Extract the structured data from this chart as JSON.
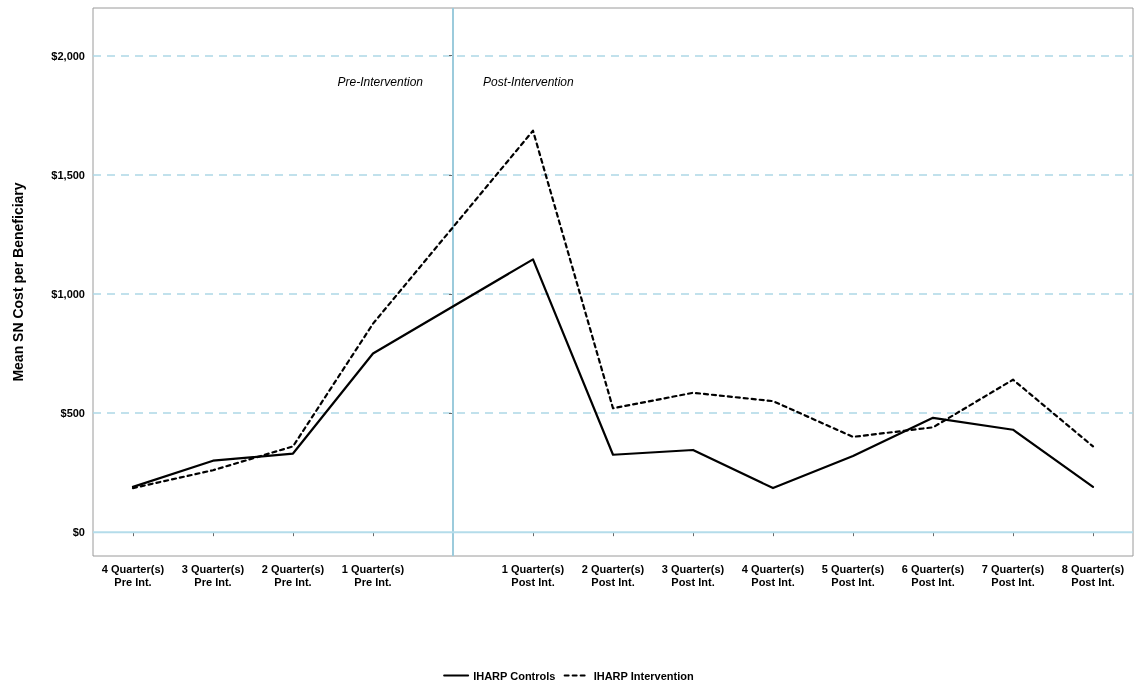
{
  "chart_data": {
    "type": "line",
    "ylabel": "Mean SN Cost per Beneficiary",
    "x": [
      -4,
      -3,
      -2,
      -1,
      1,
      2,
      3,
      4,
      5,
      6,
      7,
      8
    ],
    "xlim": [
      -4.5,
      8.5
    ],
    "xticks": [
      {
        "value": -4,
        "label": "4 Quarter(s)\nPre Int."
      },
      {
        "value": -3,
        "label": "3 Quarter(s)\nPre Int."
      },
      {
        "value": -2,
        "label": "2 Quarter(s)\nPre Int."
      },
      {
        "value": -1,
        "label": "1 Quarter(s)\nPre Int."
      },
      {
        "value": 1,
        "label": "1 Quarter(s)\nPost Int."
      },
      {
        "value": 2,
        "label": "2 Quarter(s)\nPost Int."
      },
      {
        "value": 3,
        "label": "3 Quarter(s)\nPost Int."
      },
      {
        "value": 4,
        "label": "4 Quarter(s)\nPost Int."
      },
      {
        "value": 5,
        "label": "5 Quarter(s)\nPost Int."
      },
      {
        "value": 6,
        "label": "6 Quarter(s)\nPost Int."
      },
      {
        "value": 7,
        "label": "7 Quarter(s)\nPost Int."
      },
      {
        "value": 8,
        "label": "8 Quarter(s)\nPost Int."
      }
    ],
    "ylim": [
      -100,
      2200
    ],
    "yticks": [
      {
        "value": 0,
        "label": "$0"
      },
      {
        "value": 500,
        "label": "$500"
      },
      {
        "value": 1000,
        "label": "$1,000"
      },
      {
        "value": 1500,
        "label": "$1,500"
      },
      {
        "value": 2000,
        "label": "$2,000"
      }
    ],
    "series": [
      {
        "name": "IHARP Controls",
        "color": "#000000",
        "line_style": "solid",
        "values": [
          190,
          300,
          330,
          750,
          1145,
          325,
          345,
          185,
          320,
          480,
          430,
          190
        ]
      },
      {
        "name": "IHARP Intervention",
        "color": "#000000",
        "line_style": "dashed",
        "values": [
          185,
          260,
          360,
          875,
          1685,
          520,
          585,
          550,
          400,
          440,
          640,
          360
        ]
      }
    ],
    "ref_lines": [
      {
        "axis": "x",
        "value": 0,
        "color": "#9ccbdc"
      },
      {
        "axis": "y",
        "value": 0,
        "color": "#b4dcea"
      }
    ],
    "annotations": [
      "Pre-Intervention",
      "Post-Intervention"
    ],
    "grid": "y",
    "legend": "bottom",
    "marker": "none"
  }
}
